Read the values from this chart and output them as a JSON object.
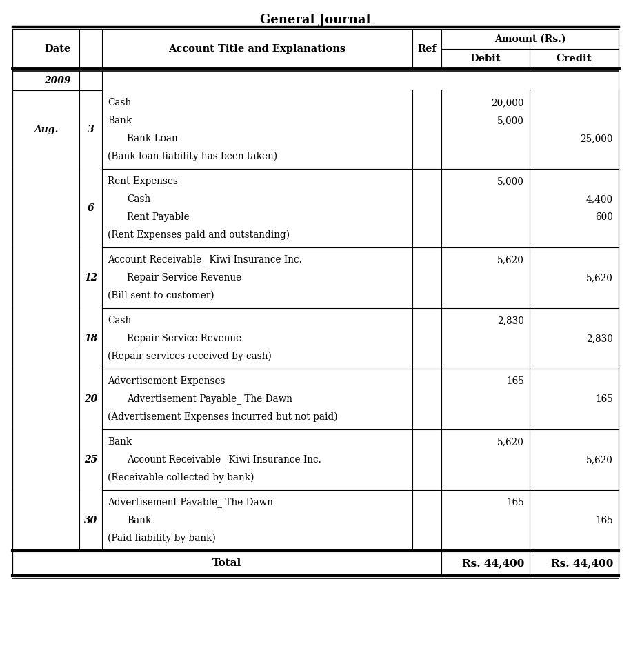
{
  "title": "General Journal",
  "headers": {
    "date": "Date",
    "account": "Account Title and Explanations",
    "ref": "Ref",
    "amount": "Amount (Rs.)",
    "debit": "Debit",
    "credit": "Credit"
  },
  "year": "2009",
  "month": "Aug.",
  "entries": [
    {
      "day_val": "3",
      "lines": [
        {
          "text": "Cash",
          "indent": 0,
          "debit": "20,000",
          "credit": ""
        },
        {
          "text": "Bank",
          "indent": 0,
          "debit": "5,000",
          "credit": ""
        },
        {
          "text": "Bank Loan",
          "indent": 1,
          "debit": "",
          "credit": "25,000"
        },
        {
          "text": "(Bank loan liability has been taken)",
          "indent": 0,
          "debit": "",
          "credit": ""
        }
      ]
    },
    {
      "day_val": "6",
      "lines": [
        {
          "text": "Rent Expenses",
          "indent": 0,
          "debit": "5,000",
          "credit": ""
        },
        {
          "text": "Cash",
          "indent": 1,
          "debit": "",
          "credit": "4,400"
        },
        {
          "text": "Rent Payable",
          "indent": 1,
          "debit": "",
          "credit": "600"
        },
        {
          "text": "(Rent Expenses paid and outstanding)",
          "indent": 0,
          "debit": "",
          "credit": ""
        }
      ]
    },
    {
      "day_val": "12",
      "lines": [
        {
          "text": "Account Receivable_ Kiwi Insurance Inc.",
          "indent": 0,
          "debit": "5,620",
          "credit": ""
        },
        {
          "text": "Repair Service Revenue",
          "indent": 1,
          "debit": "",
          "credit": "5,620"
        },
        {
          "text": "(Bill sent to customer)",
          "indent": 0,
          "debit": "",
          "credit": ""
        }
      ]
    },
    {
      "day_val": "18",
      "lines": [
        {
          "text": "Cash",
          "indent": 0,
          "debit": "2,830",
          "credit": ""
        },
        {
          "text": "Repair Service Revenue",
          "indent": 1,
          "debit": "",
          "credit": "2,830"
        },
        {
          "text": "(Repair services received by cash)",
          "indent": 0,
          "debit": "",
          "credit": ""
        }
      ]
    },
    {
      "day_val": "20",
      "lines": [
        {
          "text": "Advertisement Expenses",
          "indent": 0,
          "debit": "165",
          "credit": ""
        },
        {
          "text": "Advertisement Payable_ The Dawn",
          "indent": 1,
          "debit": "",
          "credit": "165"
        },
        {
          "text": "(Advertisement Expenses incurred but not paid)",
          "indent": 0,
          "debit": "",
          "credit": ""
        }
      ]
    },
    {
      "day_val": "25",
      "lines": [
        {
          "text": "Bank",
          "indent": 0,
          "debit": "5,620",
          "credit": ""
        },
        {
          "text": "Account Receivable_ Kiwi Insurance Inc.",
          "indent": 1,
          "debit": "",
          "credit": "5,620"
        },
        {
          "text": "(Receivable collected by bank)",
          "indent": 0,
          "debit": "",
          "credit": ""
        }
      ]
    },
    {
      "day_val": "30",
      "lines": [
        {
          "text": "Advertisement Payable_ The Dawn",
          "indent": 0,
          "debit": "165",
          "credit": ""
        },
        {
          "text": "Bank",
          "indent": 1,
          "debit": "",
          "credit": "165"
        },
        {
          "text": "(Paid liability by bank)",
          "indent": 0,
          "debit": "",
          "credit": ""
        }
      ]
    }
  ],
  "total_debit": "Rs. 44,400",
  "total_credit": "Rs. 44,400"
}
